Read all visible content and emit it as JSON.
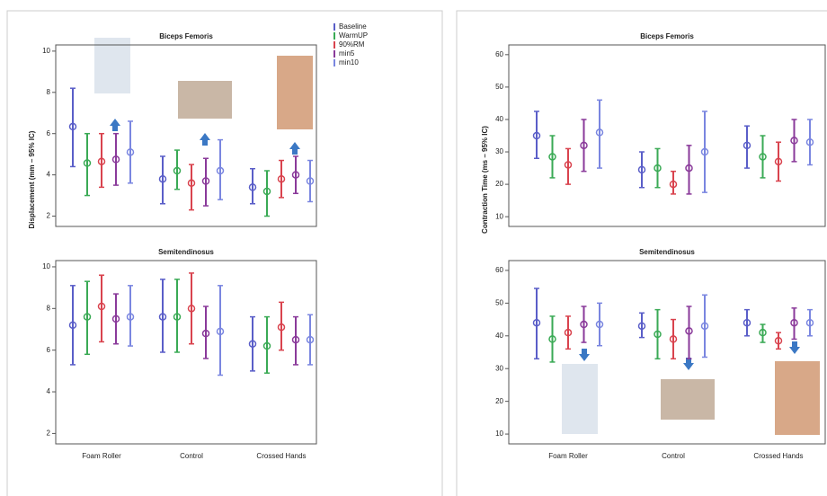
{
  "chart_data": [
    {
      "type": "errorbar",
      "title": "Biceps Femoris",
      "ylabel": "Displacement (mm – 95% IC)",
      "ylim": [
        1.5,
        10.3
      ],
      "yticks": [
        2,
        4,
        6,
        8,
        10
      ],
      "series": [
        {
          "name": "Baseline",
          "color": "#5a5ec8",
          "values": [
            6.34,
            3.8,
            3.4
          ],
          "lower": [
            4.4,
            2.6,
            2.6
          ],
          "upper": [
            8.2,
            4.9,
            4.3
          ]
        },
        {
          "name": "WarmUP",
          "color": "#3aaa55",
          "values": [
            4.57,
            4.2,
            3.2
          ],
          "lower": [
            3.0,
            3.3,
            2.0
          ],
          "upper": [
            6.0,
            5.2,
            4.2
          ]
        },
        {
          "name": "90%RM",
          "color": "#d9434e",
          "values": [
            4.65,
            3.6,
            3.8
          ],
          "lower": [
            3.4,
            2.3,
            2.9
          ],
          "upper": [
            6.0,
            4.5,
            4.7
          ]
        },
        {
          "name": "min5",
          "color": "#8a3a9a",
          "values": [
            4.75,
            3.7,
            4.0
          ],
          "lower": [
            3.5,
            2.5,
            3.1
          ],
          "upper": [
            6.0,
            4.8,
            4.9
          ]
        },
        {
          "name": "min10",
          "color": "#7a86e0",
          "values": [
            5.1,
            4.2,
            3.7
          ],
          "lower": [
            3.6,
            2.8,
            2.7
          ],
          "upper": [
            6.6,
            5.7,
            4.7
          ]
        }
      ]
    },
    {
      "type": "errorbar",
      "title": "Semitendinosus",
      "categories": [
        "Foam Roller",
        "Control",
        "Crossed Hands"
      ],
      "ylim": [
        1.5,
        10.3
      ],
      "yticks": [
        2,
        4,
        6,
        8,
        10
      ],
      "series": [
        {
          "color": "#5a5ec8",
          "values": [
            7.2,
            7.6,
            6.3
          ],
          "lower": [
            5.3,
            5.9,
            5.0
          ],
          "upper": [
            9.1,
            9.4,
            7.6
          ]
        },
        {
          "color": "#3aaa55",
          "values": [
            7.6,
            7.6,
            6.2
          ],
          "lower": [
            5.8,
            5.9,
            4.9
          ],
          "upper": [
            9.3,
            9.4,
            7.6
          ]
        },
        {
          "color": "#d9434e",
          "values": [
            8.1,
            8.0,
            7.1
          ],
          "lower": [
            6.4,
            6.3,
            6.0
          ],
          "upper": [
            9.6,
            9.7,
            8.3
          ]
        },
        {
          "color": "#8a3a9a",
          "values": [
            7.5,
            6.8,
            6.5
          ],
          "lower": [
            6.3,
            5.6,
            5.3
          ],
          "upper": [
            8.7,
            8.1,
            7.6
          ]
        },
        {
          "color": "#7a86e0",
          "values": [
            7.6,
            6.9,
            6.5
          ],
          "lower": [
            6.2,
            4.8,
            5.3
          ],
          "upper": [
            9.1,
            9.1,
            7.7
          ]
        }
      ]
    },
    {
      "type": "errorbar",
      "title": "Biceps Femoris",
      "ylabel": "Contraction Time (ms – 95% IC)",
      "ylim": [
        7,
        63
      ],
      "yticks": [
        10,
        20,
        30,
        40,
        50,
        60
      ],
      "series": [
        {
          "color": "#5a5ec8",
          "values": [
            35,
            24.5,
            32
          ],
          "lower": [
            28,
            19,
            25
          ],
          "upper": [
            42.5,
            30,
            38
          ]
        },
        {
          "color": "#3aaa55",
          "values": [
            28.5,
            25,
            28.5
          ],
          "lower": [
            22,
            19,
            22
          ],
          "upper": [
            35,
            31,
            35
          ]
        },
        {
          "color": "#d9434e",
          "values": [
            26,
            20,
            27
          ],
          "lower": [
            20,
            17,
            21
          ],
          "upper": [
            31,
            24,
            33
          ]
        },
        {
          "color": "#8a3a9a",
          "values": [
            32,
            25,
            33.5
          ],
          "lower": [
            24,
            17,
            27
          ],
          "upper": [
            40,
            32,
            40
          ]
        },
        {
          "color": "#7a86e0",
          "values": [
            36,
            30,
            33
          ],
          "lower": [
            25,
            17.5,
            26
          ],
          "upper": [
            46,
            42.5,
            40
          ]
        }
      ]
    },
    {
      "type": "errorbar",
      "title": "Semitendinosus",
      "categories": [
        "Foam Roller",
        "Control",
        "Crossed Hands"
      ],
      "ylim": [
        7,
        63
      ],
      "yticks": [
        10,
        20,
        30,
        40,
        50,
        60
      ],
      "series": [
        {
          "color": "#5a5ec8",
          "values": [
            44,
            43,
            44
          ],
          "lower": [
            33,
            39.5,
            40
          ],
          "upper": [
            54.5,
            47,
            48
          ]
        },
        {
          "color": "#3aaa55",
          "values": [
            39,
            40.5,
            41
          ],
          "lower": [
            32,
            33,
            38
          ],
          "upper": [
            46,
            48,
            43.5
          ]
        },
        {
          "color": "#d9434e",
          "values": [
            41,
            39,
            38.5
          ],
          "lower": [
            36,
            33,
            36
          ],
          "upper": [
            46,
            45,
            41
          ]
        },
        {
          "color": "#8a3a9a",
          "values": [
            43.5,
            41.5,
            44
          ],
          "lower": [
            38,
            33,
            39
          ],
          "upper": [
            49,
            49,
            48.5
          ]
        },
        {
          "color": "#7a86e0",
          "values": [
            43.5,
            43,
            44
          ],
          "lower": [
            37,
            33.5,
            40
          ],
          "upper": [
            50,
            52.5,
            48
          ]
        }
      ]
    }
  ]
}
